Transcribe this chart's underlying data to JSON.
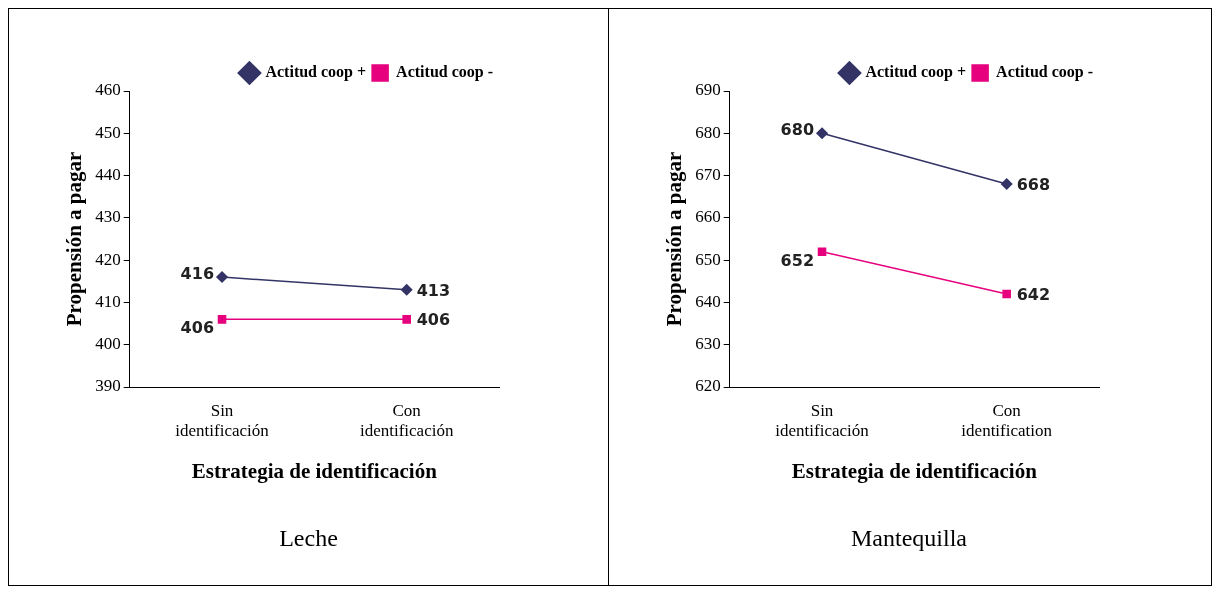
{
  "chart_data": [
    {
      "type": "line",
      "xlabel": "Estrategia de identificación",
      "ylabel": "Propensión a pagar",
      "categories": [
        "Sin identificación",
        "Con identificación"
      ],
      "ylim": [
        390,
        460
      ],
      "yticks": [
        390,
        400,
        410,
        420,
        430,
        440,
        450,
        460
      ],
      "legend": "top right",
      "data_labels": true,
      "annotations": [
        "Leche"
      ],
      "series": [
        {
          "name": "Actitud coop +",
          "color": "#333366",
          "marker": "diamond",
          "values": [
            416,
            413
          ]
        },
        {
          "name": "Actitud coop -",
          "color": "#e6007e",
          "marker": "square",
          "values": [
            406,
            406
          ]
        }
      ]
    },
    {
      "type": "line",
      "xlabel": "Estrategia de identificación",
      "ylabel": "Propensión a pagar",
      "categories": [
        "Sin identificación",
        "Con identification"
      ],
      "ylim": [
        620,
        690
      ],
      "yticks": [
        620,
        630,
        640,
        650,
        660,
        670,
        680,
        690
      ],
      "legend": "top right",
      "data_labels": true,
      "annotations": [
        "Mantequilla"
      ],
      "series": [
        {
          "name": "Actitud coop +",
          "color": "#333366",
          "marker": "diamond",
          "values": [
            680,
            668
          ]
        },
        {
          "name": "Actitud coop -",
          "color": "#e6007e",
          "marker": "square",
          "values": [
            652,
            642
          ]
        }
      ]
    }
  ]
}
